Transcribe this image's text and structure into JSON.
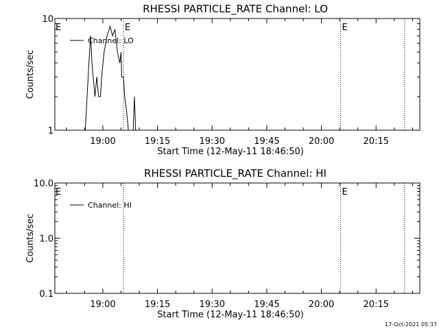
{
  "footer": {
    "timestamp": "17-Oct-2021 05:37"
  },
  "colors": {
    "background": "#ffffff",
    "foreground": "#000000"
  },
  "chart_data": [
    {
      "type": "line",
      "title": "RHESSI PARTICLE_RATE Channel: LO",
      "xlabel": "Start Time (12-May-11 18:46:50)",
      "ylabel": "Counts/sec",
      "yscale": "log",
      "ylim": [
        1,
        10
      ],
      "yticks": [
        {
          "value": 1,
          "label": "1"
        },
        {
          "value": 10,
          "label": "10"
        }
      ],
      "xlim": [
        "18:46:50",
        "20:27:00"
      ],
      "xticks": [
        "19:00",
        "19:15",
        "19:30",
        "19:45",
        "20:00",
        "20:15"
      ],
      "legend": {
        "position": "top-left",
        "entries": [
          "Channel: LO"
        ]
      },
      "markers": [
        {
          "time": "19:05:40",
          "label": "E"
        },
        {
          "time": "20:05:15",
          "label": "E"
        },
        {
          "time": "20:22:50",
          "label": ""
        }
      ],
      "edge_marker_label": "E",
      "series": [
        {
          "name": "Channel: LO",
          "x": [
            "18:54:00",
            "18:55:10",
            "18:56:20",
            "18:56:40",
            "18:57:00",
            "18:57:50",
            "18:58:20",
            "18:58:50",
            "18:59:20",
            "18:59:40",
            "19:00:20",
            "19:01:10",
            "19:02:00",
            "19:02:40",
            "19:03:20",
            "19:04:00",
            "19:04:40",
            "19:05:00",
            "19:05:10",
            "19:05:40",
            "19:06:00",
            "19:06:30",
            "19:07:00",
            "19:07:10",
            "19:08:20",
            "19:08:40",
            "19:09:00"
          ],
          "y": [
            0.8,
            1.0,
            5.0,
            7.0,
            4.0,
            2.0,
            3.0,
            2.0,
            2.0,
            3.0,
            5.0,
            7.0,
            8.5,
            7.0,
            8.0,
            5.0,
            4.0,
            5.0,
            3.0,
            3.0,
            2.0,
            1.5,
            1.0,
            0.8,
            0.8,
            2.0,
            0.8
          ]
        }
      ]
    },
    {
      "type": "line",
      "title": "RHESSI PARTICLE_RATE Channel: HI",
      "xlabel": "Start Time (12-May-11 18:46:50)",
      "ylabel": "Counts/sec",
      "yscale": "log",
      "ylim": [
        0.1,
        10
      ],
      "yticks": [
        {
          "value": 0.1,
          "label": "0.1"
        },
        {
          "value": 1,
          "label": "1.0"
        },
        {
          "value": 10,
          "label": "10.0"
        }
      ],
      "xlim": [
        "18:46:50",
        "20:27:00"
      ],
      "xticks": [
        "19:00",
        "19:15",
        "19:30",
        "19:45",
        "20:00",
        "20:15"
      ],
      "legend": {
        "position": "top-left",
        "entries": [
          "Channel: HI"
        ]
      },
      "markers": [
        {
          "time": "19:05:40",
          "label": ""
        },
        {
          "time": "20:05:15",
          "label": "E"
        },
        {
          "time": "20:22:50",
          "label": ""
        }
      ],
      "edge_marker_label": "E",
      "series": [
        {
          "name": "Channel: HI",
          "x": [],
          "y": []
        }
      ]
    }
  ]
}
